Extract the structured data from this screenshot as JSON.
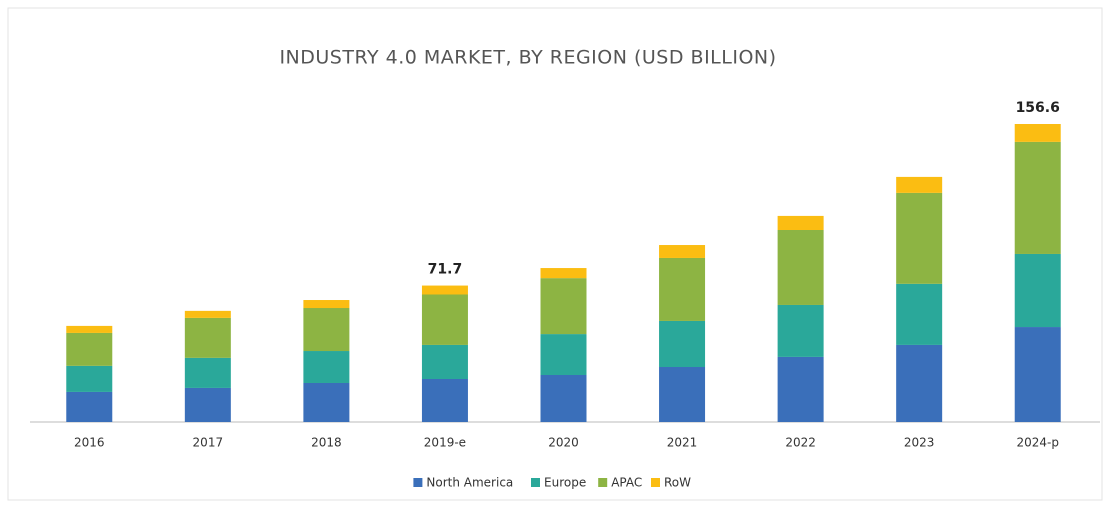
{
  "chart_data": {
    "type": "stacked_bar",
    "title": "INDUSTRY 4.0 MARKET, BY REGION (USD BILLION)",
    "categories": [
      "2016",
      "2017",
      "2018",
      "2019-e",
      "2020",
      "2021",
      "2022",
      "2023",
      "2024-p"
    ],
    "series": [
      {
        "name": "North America",
        "color": "#3a6fba",
        "values": [
          15.8,
          17.9,
          20.5,
          22.6,
          24.7,
          28.9,
          34.2,
          40.5,
          49.9
        ]
      },
      {
        "name": "Europe",
        "color": "#2aa89a",
        "values": [
          13.7,
          15.8,
          16.8,
          17.9,
          21.5,
          24.2,
          27.3,
          32.1,
          38.4
        ]
      },
      {
        "name": "APAC",
        "color": "#8db443",
        "values": [
          17.3,
          21.0,
          22.6,
          26.5,
          29.4,
          33.1,
          39.4,
          47.8,
          58.9
        ]
      },
      {
        "name": "RoW",
        "color": "#fbbd12",
        "values": [
          3.7,
          3.7,
          4.2,
          4.7,
          5.3,
          6.8,
          7.4,
          8.4,
          9.4
        ]
      }
    ],
    "annotations": [
      {
        "category": "2019-e",
        "value": 71.7
      },
      {
        "category": "2024-p",
        "value": 156.6
      }
    ]
  }
}
